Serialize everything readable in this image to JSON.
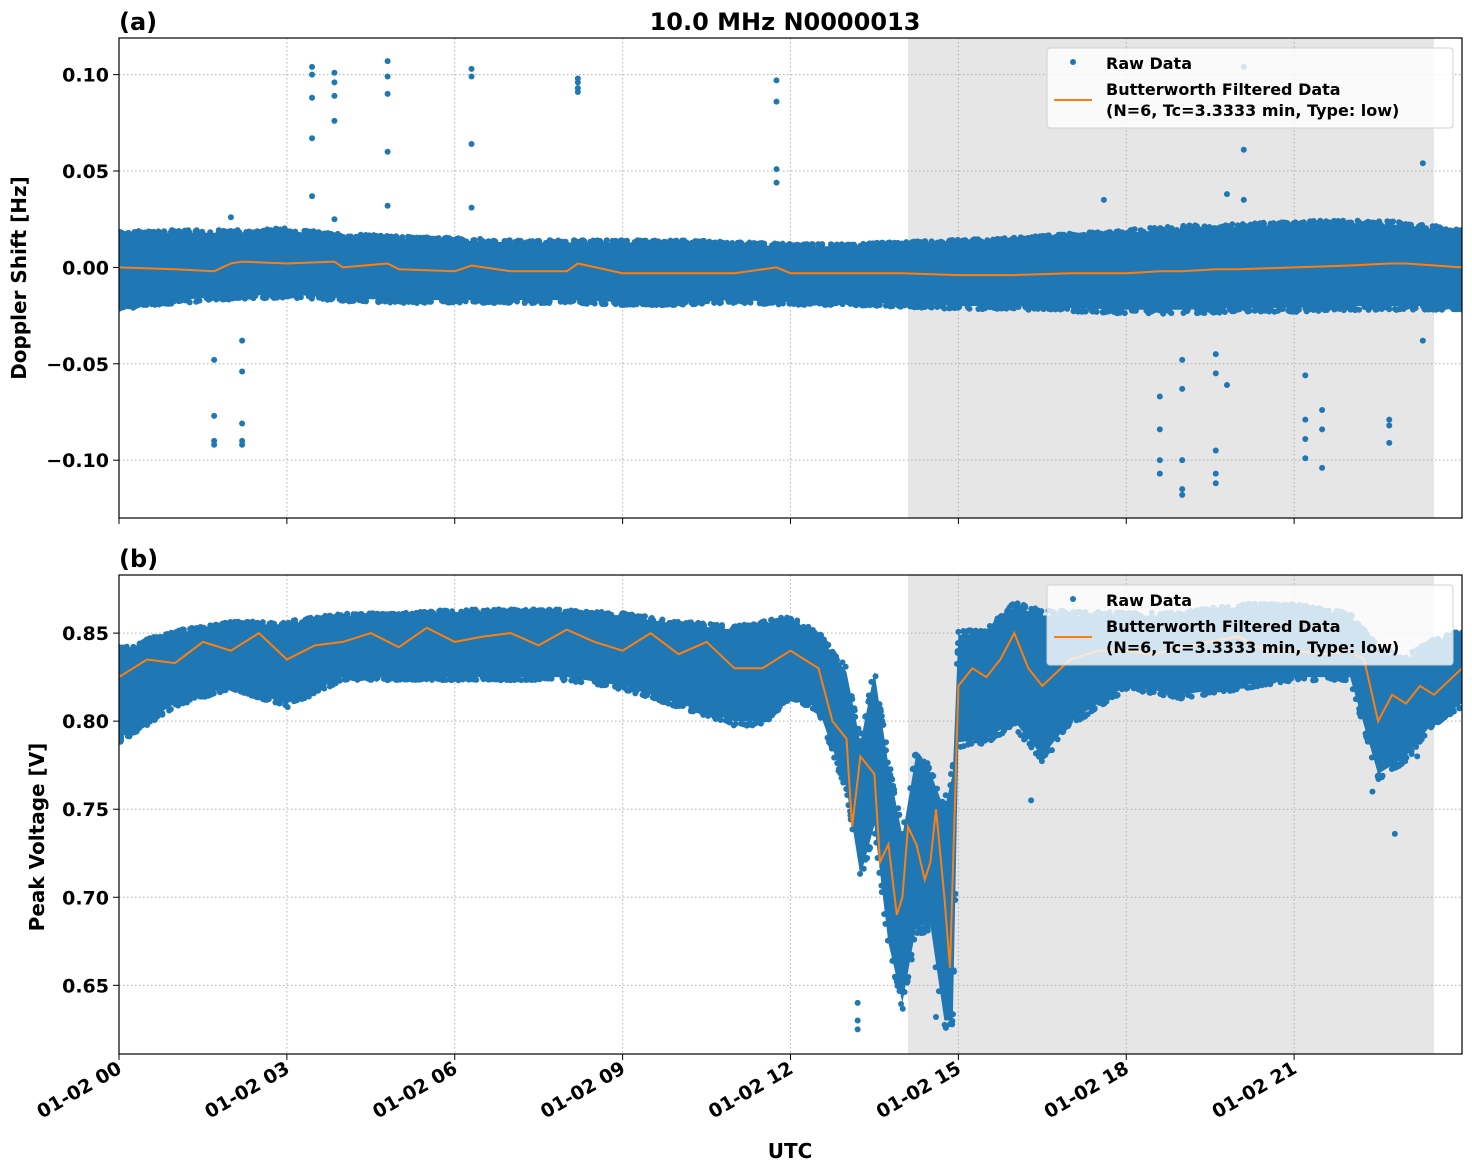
{
  "title": "10.0 MHz N0000013",
  "colors": {
    "raw": "#1f77b4",
    "filtered": "#ff7f0e",
    "shade": "#e6e6e6"
  },
  "chart_data": [
    {
      "type": "scatter",
      "panel_label": "(a)",
      "ylabel": "Doppler Shift [Hz]",
      "xlabel": "",
      "xlim_hours": [
        0,
        24
      ],
      "ylim": [
        -0.13,
        0.119
      ],
      "yticks": [
        0.1,
        0.05,
        0.0,
        -0.05,
        -0.1
      ],
      "ytick_labels": [
        "0.10",
        "0.05",
        "0.00",
        "−0.05",
        "−0.10"
      ],
      "grid": true,
      "legend_position": "top-right",
      "shaded_region_hours": [
        14.1,
        23.5
      ],
      "legend": [
        "Raw Data",
        "Butterworth Filtered Data",
        "(N=6, Tc=3.3333 min, Type: low)"
      ],
      "raw_band": {
        "hours": [
          0,
          1,
          2,
          3,
          4,
          5,
          6,
          7,
          8,
          9,
          10,
          11,
          12,
          13,
          14,
          15,
          16,
          17,
          18,
          19,
          20,
          21,
          22,
          23,
          24
        ],
        "low": [
          -0.02,
          -0.017,
          -0.015,
          -0.014,
          -0.016,
          -0.017,
          -0.017,
          -0.017,
          -0.017,
          -0.018,
          -0.018,
          -0.017,
          -0.018,
          -0.018,
          -0.019,
          -0.02,
          -0.02,
          -0.021,
          -0.022,
          -0.022,
          -0.021,
          -0.021,
          -0.02,
          -0.02,
          -0.02
        ],
        "high": [
          0.017,
          0.018,
          0.018,
          0.019,
          0.016,
          0.015,
          0.014,
          0.013,
          0.013,
          0.013,
          0.013,
          0.012,
          0.011,
          0.011,
          0.012,
          0.013,
          0.014,
          0.016,
          0.018,
          0.02,
          0.021,
          0.022,
          0.023,
          0.022,
          0.018
        ]
      },
      "outliers": [
        [
          1.7,
          -0.048
        ],
        [
          1.7,
          -0.077
        ],
        [
          1.7,
          -0.09
        ],
        [
          1.7,
          -0.092
        ],
        [
          2.2,
          -0.038
        ],
        [
          2.2,
          -0.054
        ],
        [
          2.2,
          -0.081
        ],
        [
          2.2,
          -0.09
        ],
        [
          2.2,
          -0.092
        ],
        [
          2.0,
          0.026
        ],
        [
          3.45,
          0.104
        ],
        [
          3.45,
          0.1
        ],
        [
          3.45,
          0.088
        ],
        [
          3.45,
          0.067
        ],
        [
          3.45,
          0.037
        ],
        [
          3.85,
          0.101
        ],
        [
          3.85,
          0.096
        ],
        [
          3.85,
          0.089
        ],
        [
          3.85,
          0.076
        ],
        [
          3.85,
          0.025
        ],
        [
          4.8,
          0.107
        ],
        [
          4.8,
          0.099
        ],
        [
          4.8,
          0.09
        ],
        [
          4.8,
          0.06
        ],
        [
          4.8,
          0.032
        ],
        [
          6.3,
          0.103
        ],
        [
          6.3,
          0.099
        ],
        [
          6.3,
          0.064
        ],
        [
          6.3,
          0.031
        ],
        [
          8.2,
          0.098
        ],
        [
          8.2,
          0.096
        ],
        [
          8.2,
          0.093
        ],
        [
          8.2,
          0.091
        ],
        [
          11.75,
          0.097
        ],
        [
          11.75,
          0.086
        ],
        [
          11.75,
          0.051
        ],
        [
          11.75,
          0.044
        ],
        [
          17.6,
          0.035
        ],
        [
          18.6,
          -0.067
        ],
        [
          18.6,
          -0.084
        ],
        [
          18.6,
          -0.1
        ],
        [
          18.6,
          -0.107
        ],
        [
          19.0,
          -0.048
        ],
        [
          19.0,
          -0.063
        ],
        [
          19.0,
          -0.1
        ],
        [
          19.0,
          -0.115
        ],
        [
          19.0,
          -0.118
        ],
        [
          19.6,
          -0.045
        ],
        [
          19.6,
          -0.055
        ],
        [
          19.6,
          -0.095
        ],
        [
          19.6,
          -0.107
        ],
        [
          19.6,
          -0.112
        ],
        [
          19.8,
          -0.061
        ],
        [
          19.8,
          0.038
        ],
        [
          20.1,
          0.104
        ],
        [
          20.1,
          0.061
        ],
        [
          20.1,
          0.035
        ],
        [
          21.2,
          -0.056
        ],
        [
          21.2,
          -0.079
        ],
        [
          21.2,
          -0.089
        ],
        [
          21.2,
          -0.099
        ],
        [
          21.5,
          -0.074
        ],
        [
          21.5,
          -0.084
        ],
        [
          21.5,
          -0.104
        ],
        [
          22.7,
          -0.079
        ],
        [
          22.7,
          -0.082
        ],
        [
          22.7,
          -0.091
        ],
        [
          23.3,
          0.054
        ],
        [
          23.3,
          -0.038
        ]
      ],
      "filtered": {
        "hours": [
          0,
          1,
          1.7,
          2,
          2.2,
          3,
          3.85,
          4,
          4.8,
          5,
          6,
          6.3,
          7,
          8,
          8.2,
          9,
          10,
          11,
          11.75,
          12,
          13,
          14,
          15,
          16,
          17,
          18,
          18.6,
          19,
          19.6,
          20,
          21,
          22,
          22.7,
          23,
          24
        ],
        "values": [
          0.0,
          -0.001,
          -0.002,
          0.002,
          0.003,
          0.002,
          0.003,
          0.0,
          0.002,
          -0.001,
          -0.002,
          0.001,
          -0.002,
          -0.002,
          0.002,
          -0.003,
          -0.003,
          -0.003,
          0.0,
          -0.003,
          -0.003,
          -0.003,
          -0.004,
          -0.004,
          -0.003,
          -0.003,
          -0.002,
          -0.002,
          -0.001,
          -0.001,
          0.0,
          0.001,
          0.002,
          0.002,
          0.0
        ]
      }
    },
    {
      "type": "scatter",
      "panel_label": "(b)",
      "ylabel": "Peak Voltage [V]",
      "xlabel": "UTC",
      "xlim_hours": [
        0,
        24
      ],
      "ylim": [
        0.611,
        0.883
      ],
      "yticks": [
        0.85,
        0.8,
        0.75,
        0.7,
        0.65
      ],
      "ytick_labels": [
        "0.85",
        "0.80",
        "0.75",
        "0.70",
        "0.65"
      ],
      "xtick_labels": [
        "01-02 00",
        "01-02 03",
        "01-02 06",
        "01-02 09",
        "01-02 12",
        "01-02 15",
        "01-02 18",
        "01-02 21"
      ],
      "xtick_hours": [
        0,
        3,
        6,
        9,
        12,
        15,
        18,
        21
      ],
      "grid": true,
      "legend_position": "top-right",
      "shaded_region_hours": [
        14.1,
        23.5
      ],
      "legend": [
        "Raw Data",
        "Butterworth Filtered Data",
        "(N=6, Tc=3.3333 min, Type: low)"
      ],
      "raw_band": {
        "hours": [
          0,
          1,
          2,
          3,
          4,
          5,
          6,
          7,
          8,
          9,
          10,
          11,
          11.5,
          12,
          12.5,
          13,
          13.25,
          13.5,
          13.75,
          14,
          14.25,
          14.5,
          14.75,
          14.9,
          15,
          15.5,
          16,
          16.5,
          17,
          18,
          19,
          20,
          21,
          22,
          22.5,
          23,
          23.5,
          24
        ],
        "low": [
          0.79,
          0.81,
          0.82,
          0.81,
          0.825,
          0.825,
          0.825,
          0.825,
          0.825,
          0.82,
          0.81,
          0.8,
          0.8,
          0.815,
          0.807,
          0.762,
          0.712,
          0.741,
          0.674,
          0.64,
          0.684,
          0.684,
          0.63,
          0.63,
          0.788,
          0.79,
          0.8,
          0.78,
          0.8,
          0.82,
          0.815,
          0.82,
          0.825,
          0.825,
          0.77,
          0.78,
          0.8,
          0.81
        ],
        "high": [
          0.84,
          0.85,
          0.855,
          0.855,
          0.86,
          0.86,
          0.862,
          0.862,
          0.862,
          0.86,
          0.855,
          0.852,
          0.855,
          0.858,
          0.849,
          0.828,
          0.788,
          0.828,
          0.775,
          0.735,
          0.782,
          0.771,
          0.75,
          0.77,
          0.849,
          0.85,
          0.865,
          0.86,
          0.86,
          0.86,
          0.86,
          0.865,
          0.865,
          0.86,
          0.84,
          0.835,
          0.845,
          0.85
        ]
      },
      "outliers": [
        [
          13.2,
          0.625
        ],
        [
          13.2,
          0.63
        ],
        [
          13.2,
          0.64
        ],
        [
          14.6,
          0.632
        ],
        [
          14.85,
          0.628
        ],
        [
          14.85,
          0.64
        ],
        [
          16.3,
          0.755
        ],
        [
          22.4,
          0.76
        ],
        [
          22.8,
          0.736
        ],
        [
          23.2,
          0.78
        ]
      ],
      "filtered": {
        "hours": [
          0,
          0.5,
          1,
          1.5,
          2,
          2.5,
          3,
          3.5,
          4,
          4.5,
          5,
          5.5,
          6,
          6.5,
          7,
          7.5,
          8,
          8.5,
          9,
          9.5,
          10,
          10.5,
          11,
          11.5,
          12,
          12.25,
          12.5,
          12.75,
          13,
          13.1,
          13.25,
          13.5,
          13.6,
          13.75,
          13.9,
          14,
          14.1,
          14.25,
          14.4,
          14.5,
          14.6,
          14.75,
          14.85,
          15,
          15.25,
          15.5,
          15.75,
          16,
          16.25,
          16.5,
          17,
          17.5,
          18,
          18.5,
          19,
          19.5,
          20,
          20.5,
          21,
          21.5,
          22,
          22.25,
          22.5,
          22.75,
          23,
          23.25,
          23.5,
          24
        ],
        "values": [
          0.825,
          0.835,
          0.833,
          0.845,
          0.84,
          0.85,
          0.835,
          0.843,
          0.845,
          0.85,
          0.842,
          0.853,
          0.845,
          0.848,
          0.85,
          0.843,
          0.852,
          0.845,
          0.84,
          0.85,
          0.838,
          0.845,
          0.83,
          0.83,
          0.84,
          0.835,
          0.83,
          0.8,
          0.79,
          0.74,
          0.78,
          0.77,
          0.72,
          0.73,
          0.69,
          0.7,
          0.74,
          0.73,
          0.71,
          0.72,
          0.75,
          0.7,
          0.66,
          0.82,
          0.83,
          0.825,
          0.835,
          0.85,
          0.83,
          0.82,
          0.835,
          0.84,
          0.84,
          0.838,
          0.842,
          0.845,
          0.848,
          0.84,
          0.84,
          0.838,
          0.84,
          0.835,
          0.8,
          0.815,
          0.81,
          0.82,
          0.815,
          0.83
        ]
      }
    }
  ]
}
